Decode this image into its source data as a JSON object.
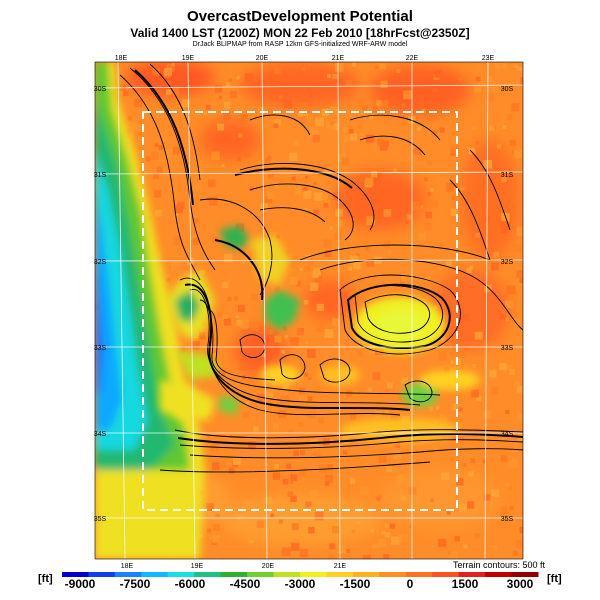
{
  "header": {
    "title": "OvercastDevelopment Potential",
    "valid": "Valid 1400 LST (1200Z) MON 22 Feb 2010 [18hrFcst@2350Z]",
    "credit": "DrJack BLIPMAP from RASP 12km GFS-initialized WRF-ARW model"
  },
  "map": {
    "lon_labels_top": [
      "18E",
      "19E",
      "20E",
      "21E",
      "22E",
      "23E"
    ],
    "lon_labels_bottom": [
      "18E",
      "19E",
      "20E",
      "21E"
    ],
    "lat_labels_left": [
      "30S",
      "31S",
      "32S",
      "33S",
      "34S",
      "35S"
    ],
    "lat_labels_right": [
      "30S",
      "31S",
      "32S",
      "33S",
      "34S",
      "35S"
    ],
    "terrain_note": "Terrain contours: 500 ft"
  },
  "colorbar": {
    "unit_left": "[ft]",
    "unit_right": "[ft]",
    "ticks": [
      "-9000",
      "-7500",
      "-6000",
      "-4500",
      "-3000",
      "-1500",
      "0",
      "1500",
      "3000"
    ],
    "colors": [
      "#0000cc",
      "#1040ee",
      "#1a80ff",
      "#10b8ff",
      "#18e0e0",
      "#20c080",
      "#30b030",
      "#70d030",
      "#c0e020",
      "#f0f020",
      "#ffd020",
      "#ffb020",
      "#ff9020",
      "#ff7020",
      "#ff5020",
      "#e02020",
      "#c00000",
      "#900000"
    ]
  }
}
